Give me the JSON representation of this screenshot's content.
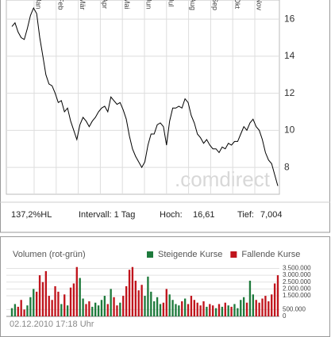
{
  "chart_data": {
    "type": "line",
    "months": [
      "Jan",
      "Feb",
      "Mär",
      "Apr",
      "Mai",
      "Jun",
      "Jul",
      "Aug",
      "Sep",
      "Okt",
      "Nov"
    ],
    "values": [
      15.6,
      15.8,
      15.3,
      15.0,
      14.9,
      15.5,
      16.2,
      16.6,
      16.3,
      15.0,
      14.0,
      13.0,
      12.5,
      12.4,
      12.0,
      11.5,
      11.6,
      11.0,
      11.2,
      10.5,
      10.0,
      9.5,
      10.3,
      10.7,
      10.5,
      10.2,
      10.5,
      10.7,
      11.0,
      11.2,
      11.3,
      11.0,
      11.8,
      11.6,
      11.4,
      11.5,
      11.1,
      10.6,
      9.7,
      9.0,
      8.6,
      8.3,
      8.0,
      8.3,
      9.2,
      9.8,
      9.8,
      10.3,
      10.4,
      10.2,
      9.2,
      10.5,
      11.2,
      11.2,
      11.3,
      11.2,
      11.7,
      11.5,
      10.8,
      10.4,
      9.8,
      9.6,
      9.3,
      9.5,
      9.2,
      9.0,
      9.0,
      8.8,
      9.1,
      9.0,
      9.3,
      9.2,
      9.4,
      9.4,
      9.8,
      10.2,
      10.0,
      10.4,
      10.6,
      10.2,
      10.0,
      9.5,
      8.8,
      8.4,
      8.2,
      7.6,
      7.0
    ],
    "color": "#000000",
    "ylim": [
      6.55,
      17.03
    ],
    "yticks": [
      8,
      10,
      12,
      14,
      16
    ],
    "grid": true,
    "watermark": ".comdirect",
    "info": {
      "range": "137,2%HL",
      "interval": "Intervall: 1 Tag",
      "high_label": "Hoch:",
      "high": "16,61",
      "low_label": "Tief:",
      "low": "7,004"
    },
    "volume": {
      "type": "bar",
      "title": "Volumen (rot-grün)",
      "legend": [
        {
          "name": "Steigende Kurse",
          "color": "#1e7a3c"
        },
        {
          "name": "Fallende Kurse",
          "color": "#c0141c"
        }
      ],
      "values": [
        600000,
        900000,
        700000,
        1200000,
        500000,
        800000,
        1400000,
        2000000,
        1800000,
        3000000,
        2500000,
        3300000,
        1500000,
        1200000,
        2200000,
        1800000,
        900000,
        1600000,
        800000,
        2100000,
        2400000,
        3600000,
        2800000,
        1300000,
        900000,
        1100000,
        700000,
        1000000,
        800000,
        1200000,
        1500000,
        900000,
        2000000,
        1400000,
        800000,
        1000000,
        1500000,
        2200000,
        3400000,
        3600000,
        2600000,
        1900000,
        2300000,
        1500000,
        2900000,
        1800000,
        1100000,
        1400000,
        900000,
        1000000,
        2000000,
        1600000,
        1200000,
        900000,
        800000,
        1100000,
        1300000,
        900000,
        1500000,
        1200000,
        1000000,
        800000,
        1100000,
        700000,
        900000,
        800000,
        600000,
        900000,
        700000,
        1000000,
        800000,
        700000,
        900000,
        600000,
        1200000,
        1400000,
        1000000,
        2600000,
        1600000,
        1200000,
        1000000,
        1300000,
        1500000,
        1100000,
        1600000,
        2400000,
        3000000
      ],
      "direction": [
        0,
        0,
        1,
        1,
        1,
        0,
        0,
        0,
        1,
        1,
        1,
        1,
        1,
        1,
        1,
        1,
        0,
        1,
        0,
        1,
        1,
        1,
        0,
        0,
        1,
        1,
        0,
        0,
        0,
        0,
        0,
        1,
        0,
        1,
        1,
        0,
        1,
        1,
        1,
        1,
        1,
        1,
        1,
        0,
        0,
        0,
        0,
        0,
        0,
        1,
        1,
        0,
        0,
        0,
        0,
        1,
        0,
        1,
        1,
        1,
        1,
        1,
        1,
        0,
        1,
        1,
        0,
        1,
        0,
        1,
        0,
        1,
        0,
        0,
        0,
        0,
        1,
        0,
        0,
        1,
        1,
        1,
        1,
        1,
        1,
        1,
        1
      ],
      "ylim": [
        0,
        3700000
      ],
      "yticks": [
        0,
        {
          "value": 500000,
          "label": "500.000"
        },
        {
          "value": 1500000,
          "label": "1.500.000"
        },
        {
          "value": 2000000,
          "label": "2.000.000"
        },
        {
          "value": 2500000,
          "label": "2.500.000"
        },
        {
          "value": 3000000,
          "label": "3.000.000"
        },
        {
          "value": 3500000,
          "label": "3.500.000"
        }
      ],
      "timestamp": "02.12.2010 17:18 Uhr"
    }
  }
}
